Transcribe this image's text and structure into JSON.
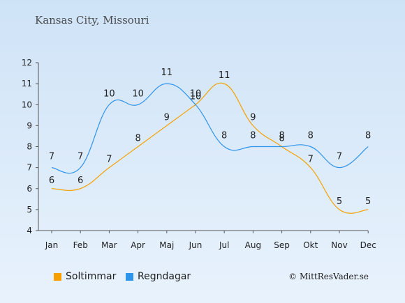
{
  "chart_data": {
    "type": "line",
    "title": "Kansas City, Missouri",
    "categories": [
      "Jan",
      "Feb",
      "Mar",
      "Apr",
      "Maj",
      "Jun",
      "Jul",
      "Aug",
      "Sep",
      "Okt",
      "Nov",
      "Dec"
    ],
    "ylim": [
      4,
      12
    ],
    "yticks": [
      4,
      5,
      6,
      7,
      8,
      9,
      10,
      11,
      12
    ],
    "grid": false,
    "legend_position": "bottom-left",
    "series": [
      {
        "name": "Soltimmar",
        "color": "#f5a000",
        "values": [
          6,
          6,
          7,
          8,
          9,
          10,
          11,
          9,
          8,
          7,
          5,
          5
        ]
      },
      {
        "name": "Regndagar",
        "color": "#2e93ea",
        "values": [
          7,
          7,
          10,
          10,
          11,
          10,
          8,
          8,
          8,
          8,
          7,
          8
        ]
      }
    ]
  },
  "copyright": "© MittResVader.se"
}
